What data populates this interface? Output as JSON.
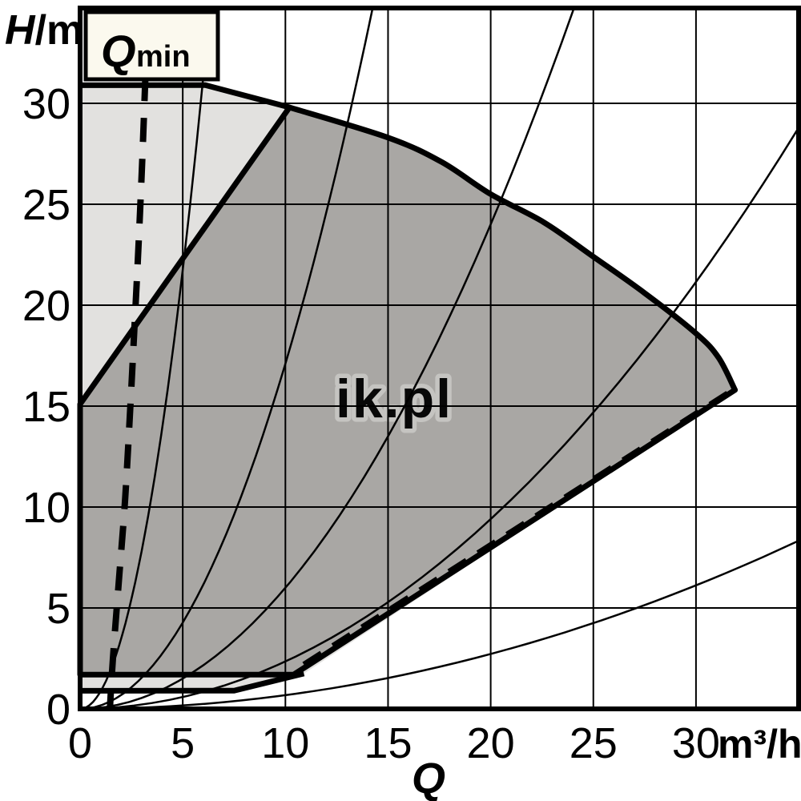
{
  "chart_data": {
    "type": "area",
    "description": "pump-duty-chart",
    "x_axis": {
      "label": "Q",
      "unit": "m³/h",
      "min": 0,
      "max": 35,
      "ticks": [
        0,
        5,
        10,
        15,
        20,
        25,
        30
      ],
      "grid_values": [
        5,
        10,
        15,
        20,
        25,
        30
      ]
    },
    "y_axis": {
      "label_italic": "H",
      "label_rest": "/m",
      "min": 0,
      "max": 34.7,
      "ticks": [
        30,
        25,
        20,
        15,
        10,
        5,
        0
      ],
      "grid_values": [
        5,
        10,
        15,
        20,
        25,
        30
      ]
    },
    "regions": [
      {
        "name": "outer-envelope",
        "fill": "#e2e1df",
        "top_edge": [
          [
            0,
            30.9
          ],
          [
            6.1,
            30.9
          ],
          [
            10.2,
            29.8
          ]
        ],
        "bottom_edge": [
          [
            0,
            0.9
          ],
          [
            7.5,
            0.9
          ],
          [
            10.9,
            1.75
          ]
        ]
      },
      {
        "name": "control-range",
        "fill": "#a9a7a4",
        "left_edge": [
          [
            0,
            15.1
          ],
          [
            10.2,
            29.8
          ]
        ],
        "top_curve": [
          [
            10.2,
            29.8
          ],
          [
            15,
            28.3
          ],
          [
            17.6,
            27.1
          ],
          [
            20,
            25.5
          ],
          [
            22.6,
            24.1
          ],
          [
            25,
            22.4
          ],
          [
            27.5,
            20.6
          ],
          [
            30,
            18.6
          ],
          [
            31.1,
            17.4
          ],
          [
            31.9,
            15.8
          ]
        ],
        "bottom_edge": [
          [
            31.9,
            15.8
          ],
          [
            10.4,
            1.7
          ],
          [
            0,
            1.7
          ]
        ]
      }
    ],
    "qmin_line": {
      "points": [
        [
          3.18,
          31.3
        ],
        [
          3.02,
          27
        ],
        [
          2.8,
          22
        ],
        [
          2.5,
          16
        ],
        [
          2.2,
          10.5
        ],
        [
          1.9,
          6.5
        ],
        [
          1.6,
          2.5
        ],
        [
          1.45,
          0
        ]
      ],
      "dash": [
        30,
        21
      ],
      "width": 8
    },
    "lower_dashed_line": {
      "points": [
        [
          10.9,
          2.2
        ],
        [
          31.8,
          15.8
        ]
      ],
      "dash": [
        26,
        17
      ],
      "width": 7
    },
    "system_curves": {
      "k_values": [
        0.87,
        0.171,
        0.06,
        0.0235,
        0.0068
      ],
      "width": 2.5
    },
    "qmin_box": {
      "label_main": "Q",
      "label_sub": "min",
      "fill": "#fbf9ee"
    },
    "watermark": {
      "text": "ik.pl",
      "outline": "#c7c6c3"
    },
    "line_color": "#000000",
    "grid_on": true,
    "legend": null
  }
}
